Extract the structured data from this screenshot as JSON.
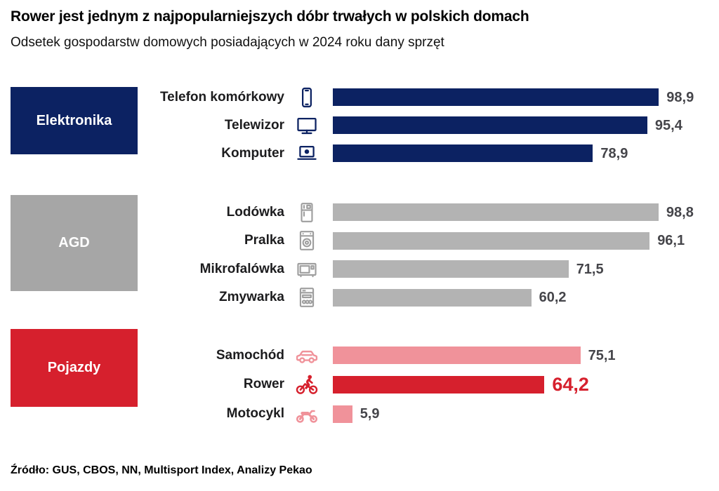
{
  "title": "Rower jest jednym z najpopularniejszych dóbr trwałych w polskich domach",
  "subtitle": "Odsetek gospodarstw domowych posiadających w 2024 roku dany sprzęt",
  "source": "Źródło: GUS, CBOS, NN, Multisport Index, Analizy Pekao",
  "colors": {
    "navy": "#0c2262",
    "gray_box": "#a6a6a6",
    "gray_bar": "#b3b3b3",
    "gray_icon": "#9e9e9e",
    "red": "#d6202d",
    "pink": "#f0929a",
    "value_text": "#45454a",
    "highlight_value": "#d6202d",
    "background": "#ffffff"
  },
  "chart_data": {
    "type": "bar",
    "orientation": "horizontal",
    "unit": "%",
    "xlim": [
      0,
      100
    ],
    "grid": "off",
    "value_labels": "on",
    "title": "Rower jest jednym z najpopularniejszych dóbr trwałych w polskich domach",
    "subtitle": "Odsetek gospodarstw domowych posiadających w 2024 roku dany sprzęt",
    "groups": [
      {
        "label": "Elektronika",
        "box_color": "#0c2262",
        "items": [
          {
            "label": "Telefon komórkowy",
            "icon": "phone-icon",
            "value": 98.9,
            "display": "98,9",
            "bar_color": "#0c2262",
            "icon_color": "#0c2262",
            "highlight": false
          },
          {
            "label": "Telewizor",
            "icon": "tv-icon",
            "value": 95.4,
            "display": "95,4",
            "bar_color": "#0c2262",
            "icon_color": "#0c2262",
            "highlight": false
          },
          {
            "label": "Komputer",
            "icon": "laptop-icon",
            "value": 78.9,
            "display": "78,9",
            "bar_color": "#0c2262",
            "icon_color": "#0c2262",
            "highlight": false
          }
        ]
      },
      {
        "label": "AGD",
        "box_color": "#a6a6a6",
        "items": [
          {
            "label": "Lodówka",
            "icon": "fridge-icon",
            "value": 98.8,
            "display": "98,8",
            "bar_color": "#b3b3b3",
            "icon_color": "#9e9e9e",
            "highlight": false
          },
          {
            "label": "Pralka",
            "icon": "washing-machine-icon",
            "value": 96.1,
            "display": "96,1",
            "bar_color": "#b3b3b3",
            "icon_color": "#9e9e9e",
            "highlight": false
          },
          {
            "label": "Mikrofalówka",
            "icon": "microwave-icon",
            "value": 71.5,
            "display": "71,5",
            "bar_color": "#b3b3b3",
            "icon_color": "#9e9e9e",
            "highlight": false
          },
          {
            "label": "Zmywarka",
            "icon": "dishwasher-icon",
            "value": 60.2,
            "display": "60,2",
            "bar_color": "#b3b3b3",
            "icon_color": "#9e9e9e",
            "highlight": false
          }
        ]
      },
      {
        "label": "Pojazdy",
        "box_color": "#d6202d",
        "items": [
          {
            "label": "Samochód",
            "icon": "car-icon",
            "value": 75.1,
            "display": "75,1",
            "bar_color": "#f0929a",
            "icon_color": "#f0929a",
            "highlight": false
          },
          {
            "label": "Rower",
            "icon": "bicycle-icon",
            "value": 64.2,
            "display": "64,2",
            "bar_color": "#d6202d",
            "icon_color": "#d6202d",
            "highlight": true
          },
          {
            "label": "Motocykl",
            "icon": "motorcycle-icon",
            "value": 5.9,
            "display": "5,9",
            "bar_color": "#f0929a",
            "icon_color": "#f0929a",
            "highlight": false
          }
        ]
      }
    ]
  }
}
